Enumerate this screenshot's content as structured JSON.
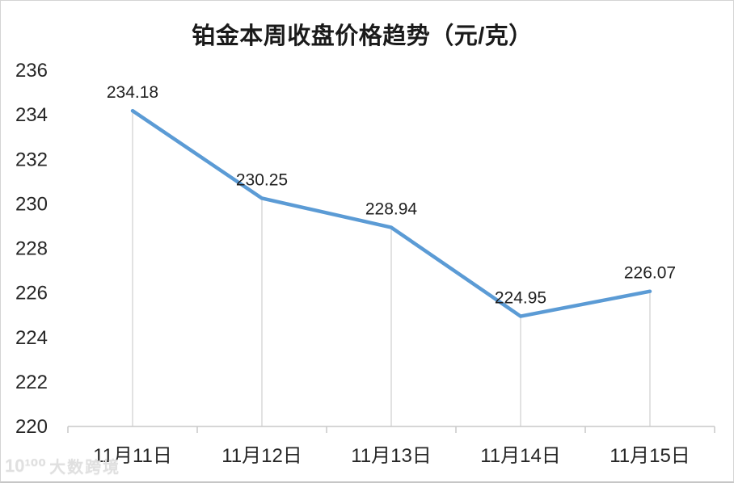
{
  "page": {
    "title": "铂金本周收盘价格趋势（元/克）"
  },
  "watermark": {
    "logo": "10¹⁰⁰",
    "text": "大数跨境"
  },
  "chart_data": {
    "type": "line",
    "title": "铂金本周收盘价格趋势（元/克）",
    "categories": [
      "11月11日",
      "11月12日",
      "11月13日",
      "11月14日",
      "11月15日"
    ],
    "values": [
      234.18,
      230.25,
      228.94,
      224.95,
      226.07
    ],
    "data_labels": [
      "234.18",
      "230.25",
      "228.94",
      "224.95",
      "226.07"
    ],
    "xlabel": "",
    "ylabel": "",
    "ylim": [
      220,
      236
    ],
    "yticks": [
      220,
      222,
      224,
      226,
      228,
      230,
      232,
      234,
      236
    ],
    "grid": "off",
    "drop_lines": true,
    "legend": "none",
    "colors": {
      "line": "#5B9BD5",
      "axis": "#C9C9C9",
      "drop_line": "#D9D9D9",
      "text": "#262626"
    }
  }
}
